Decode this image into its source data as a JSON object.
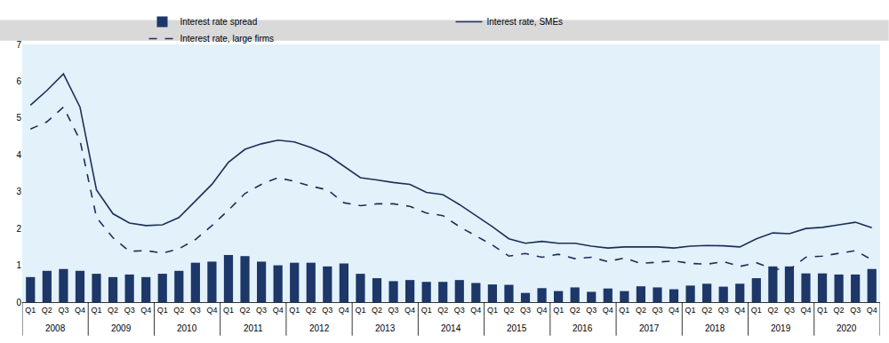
{
  "chart_data": {
    "type": "bar",
    "categories": [
      [
        "2008",
        "Q1"
      ],
      [
        "2008",
        "Q2"
      ],
      [
        "2008",
        "Q3"
      ],
      [
        "2008",
        "Q4"
      ],
      [
        "2009",
        "Q1"
      ],
      [
        "2009",
        "Q2"
      ],
      [
        "2009",
        "Q3"
      ],
      [
        "2009",
        "Q4"
      ],
      [
        "2010",
        "Q1"
      ],
      [
        "2010",
        "Q2"
      ],
      [
        "2010",
        "Q3"
      ],
      [
        "2010",
        "Q4"
      ],
      [
        "2011",
        "Q1"
      ],
      [
        "2011",
        "Q2"
      ],
      [
        "2011",
        "Q3"
      ],
      [
        "2011",
        "Q4"
      ],
      [
        "2012",
        "Q1"
      ],
      [
        "2012",
        "Q2"
      ],
      [
        "2012",
        "Q3"
      ],
      [
        "2012",
        "Q4"
      ],
      [
        "2013",
        "Q1"
      ],
      [
        "2013",
        "Q2"
      ],
      [
        "2013",
        "Q3"
      ],
      [
        "2013",
        "Q4"
      ],
      [
        "2014",
        "Q1"
      ],
      [
        "2014",
        "Q2"
      ],
      [
        "2014",
        "Q3"
      ],
      [
        "2014",
        "Q4"
      ],
      [
        "2015",
        "Q1"
      ],
      [
        "2015",
        "Q2"
      ],
      [
        "2015",
        "Q3"
      ],
      [
        "2015",
        "Q4"
      ],
      [
        "2016",
        "Q1"
      ],
      [
        "2016",
        "Q2"
      ],
      [
        "2016",
        "Q3"
      ],
      [
        "2016",
        "Q4"
      ],
      [
        "2017",
        "Q1"
      ],
      [
        "2017",
        "Q2"
      ],
      [
        "2017",
        "Q3"
      ],
      [
        "2017",
        "Q4"
      ],
      [
        "2018",
        "Q1"
      ],
      [
        "2018",
        "Q2"
      ],
      [
        "2018",
        "Q3"
      ],
      [
        "2018",
        "Q4"
      ],
      [
        "2019",
        "Q1"
      ],
      [
        "2019",
        "Q2"
      ],
      [
        "2019",
        "Q3"
      ],
      [
        "2019",
        "Q4"
      ],
      [
        "2020",
        "Q1"
      ],
      [
        "2020",
        "Q2"
      ],
      [
        "2020",
        "Q3"
      ],
      [
        "2020",
        "Q4"
      ]
    ],
    "series": [
      {
        "name": "Interest rate spread",
        "type": "bar",
        "color": "#1c3768",
        "values": [
          0.68,
          0.85,
          0.9,
          0.85,
          0.77,
          0.68,
          0.75,
          0.68,
          0.77,
          0.85,
          1.07,
          1.1,
          1.28,
          1.25,
          1.1,
          1.0,
          1.07,
          1.07,
          0.97,
          1.05,
          0.77,
          0.65,
          0.57,
          0.6,
          0.55,
          0.55,
          0.6,
          0.52,
          0.48,
          0.47,
          0.25,
          0.38,
          0.3,
          0.4,
          0.28,
          0.37,
          0.3,
          0.43,
          0.4,
          0.35,
          0.45,
          0.5,
          0.42,
          0.5,
          0.65,
          0.97,
          0.97,
          0.78,
          0.78,
          0.75,
          0.75,
          0.9
        ]
      },
      {
        "name": "Interest rate, SMEs",
        "type": "line",
        "line_style": "solid",
        "color": "#1c2f5a",
        "values": [
          5.35,
          5.75,
          6.2,
          5.3,
          3.05,
          2.4,
          2.15,
          2.08,
          2.1,
          2.3,
          2.75,
          3.2,
          3.8,
          4.15,
          4.3,
          4.4,
          4.35,
          4.2,
          4.0,
          3.7,
          3.38,
          3.32,
          3.25,
          3.2,
          2.98,
          2.92,
          2.65,
          2.35,
          2.05,
          1.72,
          1.6,
          1.65,
          1.6,
          1.6,
          1.52,
          1.47,
          1.5,
          1.5,
          1.5,
          1.47,
          1.52,
          1.54,
          1.53,
          1.5,
          1.72,
          1.88,
          1.86,
          2.0,
          2.03,
          2.1,
          2.17,
          2.02
        ]
      },
      {
        "name": "Interest rate, large firms",
        "type": "line",
        "line_style": "dash",
        "color": "#1c2f5a",
        "values": [
          4.7,
          4.9,
          5.3,
          4.4,
          2.3,
          1.75,
          1.38,
          1.4,
          1.33,
          1.45,
          1.7,
          2.08,
          2.5,
          2.95,
          3.2,
          3.38,
          3.28,
          3.15,
          3.05,
          2.7,
          2.62,
          2.67,
          2.67,
          2.6,
          2.42,
          2.35,
          2.05,
          1.8,
          1.55,
          1.25,
          1.32,
          1.22,
          1.3,
          1.18,
          1.22,
          1.1,
          1.2,
          1.05,
          1.08,
          1.12,
          1.05,
          1.03,
          1.1,
          0.97,
          1.07,
          0.9,
          0.88,
          1.22,
          1.25,
          1.32,
          1.4,
          1.15
        ]
      }
    ],
    "ylim": [
      0,
      7
    ],
    "yticks": [
      0,
      1,
      2,
      3,
      4,
      5,
      6,
      7
    ],
    "grid": false,
    "legend": "top"
  }
}
